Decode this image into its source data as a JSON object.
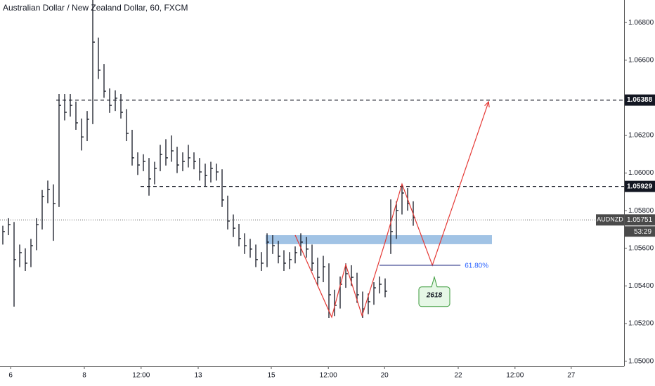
{
  "chart_data": {
    "type": "hlc",
    "title": "Australian Dollar / New Zealand Dollar, 60, FXCM",
    "symbol": "AUDNZD",
    "last_price": 1.05751,
    "countdown": "53:29",
    "color": "#131722",
    "xlim": [
      0,
      111
    ],
    "ylim": [
      1.0498,
      1.0692
    ],
    "yticks": [
      {
        "value": 1.068,
        "label": "1.06800"
      },
      {
        "value": 1.066,
        "label": "1.06600"
      },
      {
        "value": 1.062,
        "label": "1.06200"
      },
      {
        "value": 1.06,
        "label": "1.06000"
      },
      {
        "value": 1.058,
        "label": "1.05800"
      },
      {
        "value": 1.056,
        "label": "1.05600"
      },
      {
        "value": 1.054,
        "label": "1.05400"
      },
      {
        "value": 1.052,
        "label": "1.05200"
      },
      {
        "value": 1.05,
        "label": "1.05000"
      }
    ],
    "xticks": [
      {
        "value": 1.9,
        "label": "6"
      },
      {
        "value": 15,
        "label": "8"
      },
      {
        "value": 25.1,
        "label": "12:00"
      },
      {
        "value": 35.25,
        "label": "13"
      },
      {
        "value": 48.25,
        "label": "15"
      },
      {
        "value": 58.4,
        "label": "12:00"
      },
      {
        "value": 68.4,
        "label": "20"
      },
      {
        "value": 81.5,
        "label": "22"
      },
      {
        "value": 91.6,
        "label": "12:00"
      },
      {
        "value": 101.6,
        "label": "27"
      }
    ],
    "close": [
      1.05689,
      1.05726,
      1.0554,
      1.05577,
      1.05521,
      1.05614,
      1.05726,
      1.05875,
      1.05913,
      1.05838,
      1.0636,
      1.06323,
      1.0636,
      1.06267,
      1.06192,
      1.06286,
      1.06696,
      1.06547,
      1.06435,
      1.0636,
      1.06398,
      1.06323,
      1.06211,
      1.06081,
      1.06043,
      1.06062,
      1.05969,
      1.06025,
      1.06099,
      1.06081,
      1.06118,
      1.06043,
      1.06062,
      1.06081,
      1.06062,
      1.06006,
      1.05987,
      1.06025,
      1.06006,
      1.05857,
      1.05745,
      1.05707,
      1.05652,
      1.05614,
      1.05596,
      1.0554,
      1.05521,
      1.05633,
      1.05614,
      1.05558,
      1.05521,
      1.0554,
      1.05577,
      1.05633,
      1.05596,
      1.05521,
      1.05446,
      1.05502,
      1.05353,
      1.05297,
      1.05409,
      1.05465,
      1.05446,
      1.05353,
      1.05278,
      1.05316,
      1.0539,
      1.05409,
      1.05372,
      1.05689,
      1.05801,
      1.05894,
      1.05838,
      1.05763
    ],
    "high": [
      1.0572,
      1.0576,
      1.0574,
      1.0562,
      1.056,
      1.0565,
      1.0576,
      1.0591,
      1.0596,
      1.0594,
      1.0642,
      1.0642,
      1.0642,
      1.0638,
      1.0629,
      1.0633,
      1.0692,
      1.0672,
      1.0658,
      1.0645,
      1.0644,
      1.0642,
      1.0634,
      1.0623,
      1.0611,
      1.061,
      1.0608,
      1.0606,
      1.0615,
      1.0618,
      1.062,
      1.0614,
      1.0611,
      1.0615,
      1.0611,
      1.0608,
      1.0605,
      1.0606,
      1.0605,
      1.0602,
      1.0588,
      1.0578,
      1.0573,
      1.0568,
      1.0565,
      1.0562,
      1.0558,
      1.0568,
      1.0567,
      1.0564,
      1.0559,
      1.0558,
      1.0561,
      1.0568,
      1.0566,
      1.0562,
      1.0555,
      1.0556,
      1.0552,
      1.0538,
      1.0545,
      1.0552,
      1.0551,
      1.0547,
      1.0537,
      1.0536,
      1.0542,
      1.0545,
      1.0544,
      1.0586,
      1.0585,
      1.0594,
      1.0592,
      1.0585
    ],
    "low": [
      1.0562,
      1.0567,
      1.0529,
      1.055,
      1.0548,
      1.055,
      1.0559,
      1.057,
      1.0584,
      1.0564,
      1.0582,
      1.0628,
      1.063,
      1.0623,
      1.0612,
      1.0617,
      1.0626,
      1.065,
      1.064,
      1.0632,
      1.0633,
      1.0629,
      1.0617,
      1.0604,
      1.0599,
      1.0601,
      1.0588,
      1.0594,
      1.0601,
      1.0604,
      1.0606,
      1.06,
      1.0601,
      1.0603,
      1.0602,
      1.0596,
      1.0593,
      1.0595,
      1.0596,
      1.0582,
      1.057,
      1.0566,
      1.0561,
      1.0557,
      1.0555,
      1.055,
      1.0548,
      1.055,
      1.0557,
      1.0552,
      1.0548,
      1.0549,
      1.0552,
      1.0556,
      1.0555,
      1.0548,
      1.054,
      1.0542,
      1.0523,
      1.0524,
      1.0528,
      1.0539,
      1.054,
      1.0531,
      1.0523,
      1.0525,
      1.053,
      1.0536,
      1.0534,
      1.0557,
      1.0565,
      1.0578,
      1.058,
      1.0572
    ],
    "levels": [
      {
        "value": 1.06388,
        "from": 10
      },
      {
        "value": 1.05929,
        "from": 25
      }
    ],
    "zone": {
      "x": [
        47.25,
        87.5
      ],
      "y": [
        1.0567,
        1.05622
      ],
      "color": "#90b8e0"
    },
    "pattern": {
      "color": "#e53935",
      "x": [
        52.5,
        59,
        61.5,
        64.4,
        68.5,
        71.5,
        76.9,
        86.9
      ],
      "y": [
        1.0567,
        1.05234,
        1.05513,
        1.05241,
        1.05633,
        1.05942,
        1.0551,
        1.06379
      ]
    },
    "fib": {
      "label": "61.80%",
      "value": 1.0551,
      "x": [
        67.5,
        81.9
      ],
      "color": "#2962ff"
    },
    "callout": {
      "text": "2618",
      "x": 77.25,
      "y": 1.0541
    }
  }
}
